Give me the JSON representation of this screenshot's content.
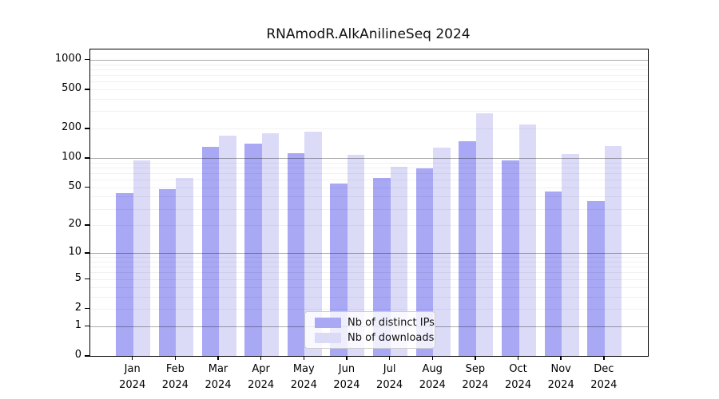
{
  "title": "RNAmodR.AlkAnilineSeq 2024",
  "colors": {
    "distinct_ips": "#a8a8f5",
    "downloads": "#dbdbf8",
    "grid_major": "rgba(0,0,0,0.33)",
    "grid_minor": "rgba(0,0,0,0.055)",
    "axis": "#000000"
  },
  "legend": {
    "items": [
      {
        "label": "Nb of distinct IPs",
        "color_key": "distinct_ips"
      },
      {
        "label": "Nb of downloads",
        "color_key": "downloads"
      }
    ]
  },
  "chart_data": {
    "type": "bar",
    "title": "RNAmodR.AlkAnilineSeq 2024",
    "categories": [
      "Jan",
      "Feb",
      "Mar",
      "Apr",
      "May",
      "Jun",
      "Jul",
      "Aug",
      "Sep",
      "Oct",
      "Nov",
      "Dec"
    ],
    "category_year": "2024",
    "series": [
      {
        "name": "Nb of distinct IPs",
        "values": [
          44,
          48,
          130,
          140,
          112,
          55,
          63,
          78,
          148,
          95,
          45,
          36
        ]
      },
      {
        "name": "Nb of downloads",
        "values": [
          95,
          62,
          170,
          180,
          186,
          107,
          82,
          127,
          285,
          220,
          110,
          133
        ]
      }
    ],
    "xlabel": "",
    "ylabel": "",
    "yscale": "log10(value+1)",
    "ylim": [
      0,
      1248
    ],
    "yticks": [
      0,
      1,
      2,
      5,
      10,
      20,
      50,
      100,
      200,
      500,
      1000
    ],
    "grid": "major and minor horizontal gridlines",
    "legend_position": "bottom-center"
  }
}
